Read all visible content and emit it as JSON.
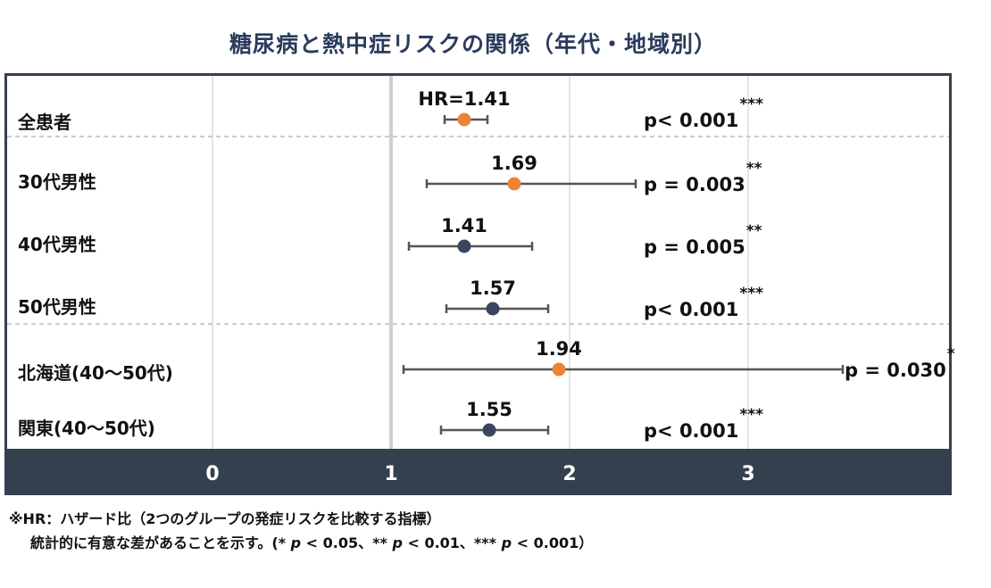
{
  "colors": {
    "orange": "#ee8334",
    "navy": "#3a4560",
    "title": "#2a3b5c",
    "axis_bar": "#35404f",
    "axis_text": "#ffffff",
    "errorbar": "#555555",
    "grid_major": "#cfcfcf",
    "grid_minor": "#e4e4e4",
    "separator": "#bbbbbb"
  },
  "chart_data": {
    "type": "forest",
    "title": "糖尿病と熱中症リスクの関係（年代・地域別）",
    "xlim": [
      -1,
      4.15
    ],
    "x_ticks": [
      "0",
      "1",
      "2",
      "3"
    ],
    "x_tick_values": [
      0,
      1,
      2,
      3
    ],
    "reference_line": 1,
    "rows": [
      {
        "label": "全患者",
        "hr_label": "HR=1.41",
        "hr": 1.41,
        "ci_low": 1.3,
        "ci_high": 1.54,
        "p_text": "p< 0.001",
        "stars": "***",
        "color": "orange"
      },
      {
        "label": "30代男性",
        "hr_label": "1.69",
        "hr": 1.69,
        "ci_low": 1.2,
        "ci_high": 2.37,
        "p_text": "p = 0.003",
        "stars": "**",
        "color": "orange"
      },
      {
        "label": "40代男性",
        "hr_label": "1.41",
        "hr": 1.41,
        "ci_low": 1.1,
        "ci_high": 1.79,
        "p_text": "p = 0.005",
        "stars": "**",
        "color": "navy"
      },
      {
        "label": "50代男性",
        "hr_label": "1.57",
        "hr": 1.57,
        "ci_low": 1.31,
        "ci_high": 1.88,
        "p_text": "p< 0.001",
        "stars": "***",
        "color": "navy"
      },
      {
        "label": "北海道(40～50代)",
        "hr_label": "1.94",
        "hr": 1.94,
        "ci_low": 1.07,
        "ci_high": 3.53,
        "p_text": "p = 0.030",
        "stars": "*",
        "color": "orange"
      },
      {
        "label": "関東(40～50代)",
        "hr_label": "1.55",
        "hr": 1.55,
        "ci_low": 1.28,
        "ci_high": 1.88,
        "p_text": "p< 0.001",
        "stars": "***",
        "color": "navy"
      }
    ]
  },
  "footnote": {
    "line1": "※HR：ハザード比（2つのグループの発症リスクを比較する指標）",
    "line2_pre": "統計的に有意な差があることを示す。(* ",
    "p": "p",
    "t1": " < 0.05、** ",
    "t2": " < 0.01、*** ",
    "t3": " < 0.001）"
  }
}
